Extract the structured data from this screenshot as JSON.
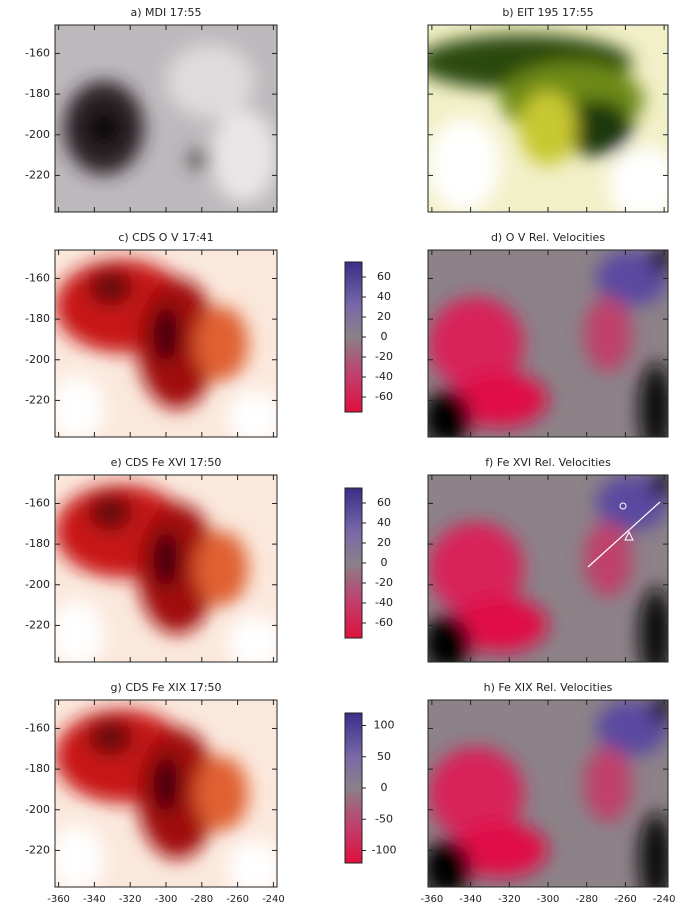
{
  "axes": {
    "xlim": [
      -362,
      -238
    ],
    "xticks": [
      -360,
      -340,
      -320,
      -300,
      -280,
      -260,
      -240
    ],
    "ylim": [
      -238,
      -146
    ],
    "yticks": [
      -160,
      -180,
      -200,
      -220
    ]
  },
  "panels": [
    {
      "title": "a)   MDI 17:55",
      "colormap": "gray"
    },
    {
      "title": "b)   EIT 195 17:55",
      "colormap": "green"
    },
    {
      "title": "c)   CDS O V 17:41",
      "colormap": "red"
    },
    {
      "title": "d)   O V Rel. Velocities",
      "colormap": "velocity"
    },
    {
      "title": "e)   CDS Fe XVI 17:50",
      "colormap": "red"
    },
    {
      "title": "f)   Fe XVI Rel. Velocities",
      "colormap": "velocity"
    },
    {
      "title": "g)   CDS Fe XIX 17:50",
      "colormap": "red"
    },
    {
      "title": "h)   Fe XIX Rel. Velocities",
      "colormap": "velocity"
    }
  ],
  "colorbars": [
    {
      "lim": [
        -75,
        75
      ],
      "ticks": [
        60,
        40,
        20,
        0,
        -20,
        -40,
        -60
      ]
    },
    {
      "lim": [
        -75,
        75
      ],
      "ticks": [
        60,
        40,
        20,
        0,
        -20,
        -40,
        -60
      ]
    },
    {
      "lim": [
        -120,
        120
      ],
      "ticks": [
        100,
        50,
        0,
        -50,
        -100
      ]
    }
  ]
}
